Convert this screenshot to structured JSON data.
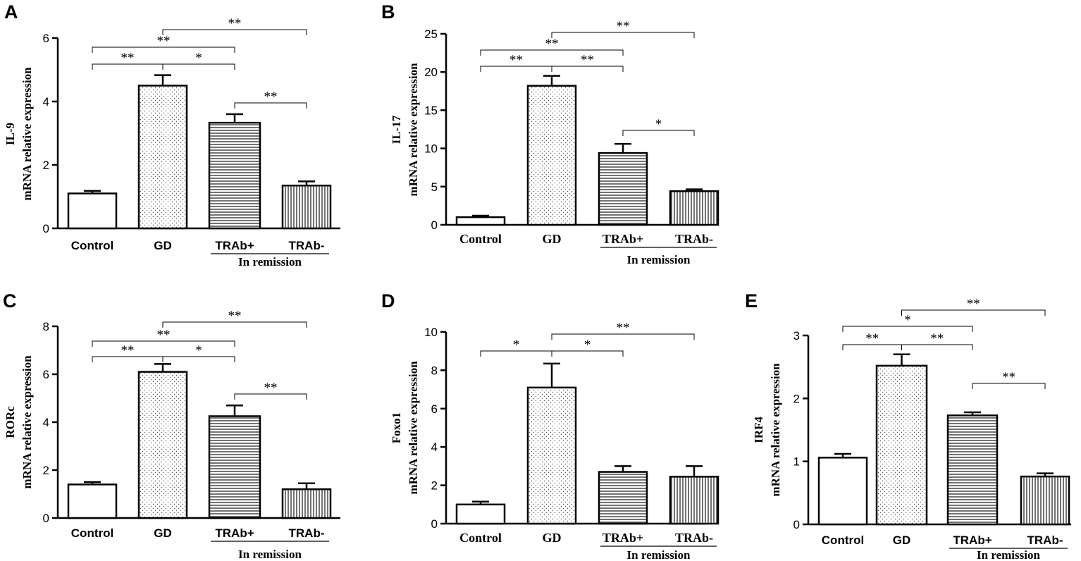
{
  "chart_data": [
    {
      "panel": "A",
      "type": "bar",
      "ylabel_lines": [
        "IL-9",
        "mRNA relative expression"
      ],
      "categories": [
        "Control",
        "GD",
        "TRAb+",
        "TRAb-"
      ],
      "group_label": "In remission",
      "ylim": [
        0,
        6
      ],
      "yticks": [
        "0",
        "2",
        "4",
        "6"
      ],
      "values": [
        1.1,
        4.5,
        3.33,
        1.35
      ],
      "errors": [
        0.08,
        0.33,
        0.27,
        0.13
      ],
      "significance": [
        {
          "from": 0,
          "to": 1,
          "label": "**"
        },
        {
          "from": 1,
          "to": 2,
          "label": "*"
        },
        {
          "from": 0,
          "to": 2,
          "label": "**"
        },
        {
          "from": 1,
          "to": 3,
          "label": "**"
        },
        {
          "from": 2,
          "to": 3,
          "label": "**"
        }
      ]
    },
    {
      "panel": "B",
      "type": "bar",
      "ylabel_lines": [
        "IL-17",
        "mRNA relative expression"
      ],
      "categories": [
        "Control",
        "GD",
        "TRAb+",
        "TRAb-"
      ],
      "group_label": "In remission",
      "ylim": [
        0,
        25
      ],
      "yticks": [
        "0",
        "5",
        "10",
        "15",
        "20",
        "25"
      ],
      "values": [
        1.0,
        18.2,
        9.4,
        4.4
      ],
      "errors": [
        0.2,
        1.3,
        1.2,
        0.25
      ],
      "significance": [
        {
          "from": 0,
          "to": 1,
          "label": "**"
        },
        {
          "from": 1,
          "to": 2,
          "label": "**"
        },
        {
          "from": 0,
          "to": 2,
          "label": "**"
        },
        {
          "from": 1,
          "to": 3,
          "label": "**"
        },
        {
          "from": 2,
          "to": 3,
          "label": "*"
        }
      ]
    },
    {
      "panel": "C",
      "type": "bar",
      "ylabel_lines": [
        "RORc",
        "mRNA relative expression"
      ],
      "categories": [
        "Control",
        "GD",
        "TRAb+",
        "TRAb-"
      ],
      "group_label": "In remission",
      "ylim": [
        0,
        8
      ],
      "yticks": [
        "0",
        "2",
        "4",
        "6",
        "8"
      ],
      "values": [
        1.4,
        6.1,
        4.25,
        1.2
      ],
      "errors": [
        0.1,
        0.33,
        0.45,
        0.25
      ],
      "significance": [
        {
          "from": 0,
          "to": 1,
          "label": "**"
        },
        {
          "from": 1,
          "to": 2,
          "label": "*"
        },
        {
          "from": 0,
          "to": 2,
          "label": "**"
        },
        {
          "from": 1,
          "to": 3,
          "label": "**"
        },
        {
          "from": 2,
          "to": 3,
          "label": "**"
        }
      ]
    },
    {
      "panel": "D",
      "type": "bar",
      "ylabel_lines": [
        "Foxo1",
        "mRNA relative expression"
      ],
      "categories": [
        "Control",
        "GD",
        "TRAb+",
        "TRAb-"
      ],
      "group_label": "In remission",
      "ylim": [
        0,
        10
      ],
      "yticks": [
        "0",
        "2",
        "4",
        "6",
        "8",
        "10"
      ],
      "values": [
        1.0,
        7.1,
        2.7,
        2.45
      ],
      "errors": [
        0.15,
        1.25,
        0.3,
        0.55
      ],
      "significance": [
        {
          "from": 0,
          "to": 1,
          "label": "*"
        },
        {
          "from": 1,
          "to": 2,
          "label": "*"
        },
        {
          "from": 1,
          "to": 3,
          "label": "**"
        }
      ]
    },
    {
      "panel": "E",
      "type": "bar",
      "ylabel_lines": [
        "IRF4",
        "mRNA relative expression"
      ],
      "categories": [
        "Control",
        "GD",
        "TRAb+",
        "TRAb-"
      ],
      "group_label": "In remission",
      "ylim": [
        0,
        3
      ],
      "yticks": [
        "0",
        "1",
        "2",
        "3"
      ],
      "values": [
        1.06,
        2.52,
        1.73,
        0.76
      ],
      "errors": [
        0.06,
        0.18,
        0.05,
        0.05
      ],
      "significance": [
        {
          "from": 0,
          "to": 1,
          "label": "**"
        },
        {
          "from": 1,
          "to": 2,
          "label": "**"
        },
        {
          "from": 0,
          "to": 2,
          "label": "*"
        },
        {
          "from": 1,
          "to": 3,
          "label": "**"
        },
        {
          "from": 2,
          "to": 3,
          "label": "**"
        }
      ]
    }
  ]
}
